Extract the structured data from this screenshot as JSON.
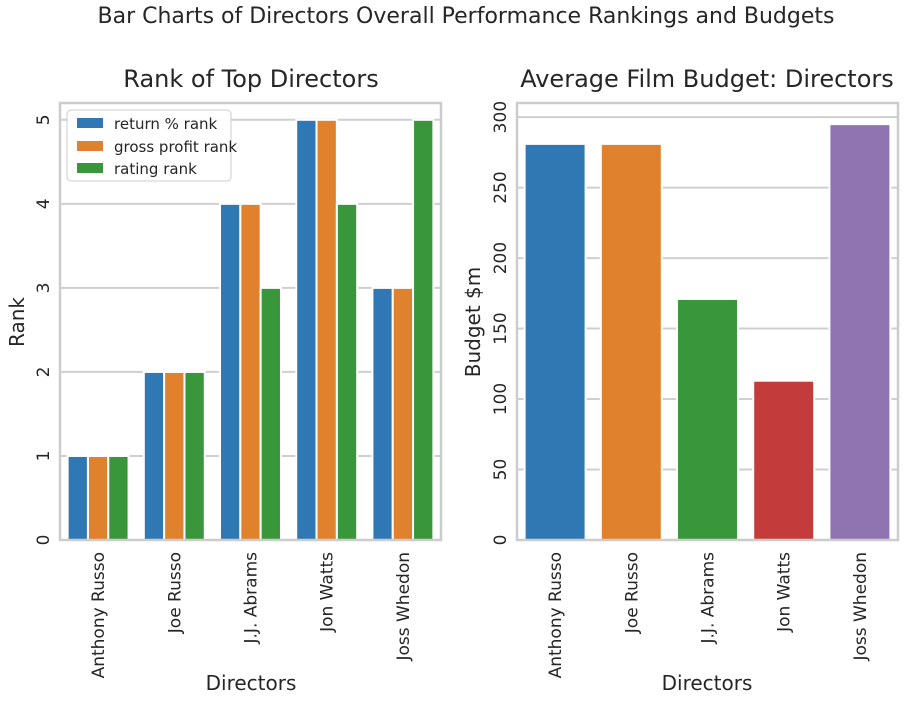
{
  "figure": {
    "suptitle": "Bar Charts of Directors Overall Performance Rankings and Budgets"
  },
  "colors": {
    "blue": "#2f78b3",
    "orange": "#e0822d",
    "green": "#3a963a",
    "red": "#c43b3c",
    "purple": "#9074b2",
    "grid": "#cfcfcf",
    "spine": "#cccccc"
  },
  "chart_data": [
    {
      "type": "bar",
      "title": "Rank of Top Directors",
      "xlabel": "Directors",
      "ylabel": "Rank",
      "categories": [
        "Anthony Russo",
        "Joe Russo",
        "J.J. Abrams",
        "Jon Watts",
        "Joss Whedon"
      ],
      "series": [
        {
          "name": "return % rank",
          "values": [
            1,
            2,
            4,
            5,
            3
          ]
        },
        {
          "name": "gross profit rank",
          "values": [
            1,
            2,
            4,
            5,
            3
          ]
        },
        {
          "name": "rating rank",
          "values": [
            1,
            2,
            3,
            4,
            5
          ]
        }
      ],
      "ylim": [
        0,
        5.2
      ],
      "yticks": [
        "0",
        "1",
        "2",
        "3",
        "4",
        "5"
      ],
      "grid": true,
      "legend": "top-left"
    },
    {
      "type": "bar",
      "title": "Average Film Budget: Directors",
      "xlabel": "Directors",
      "ylabel": "Budget $m",
      "categories": [
        "Anthony Russo",
        "Joe Russo",
        "J.J. Abrams",
        "Jon Watts",
        "Joss Whedon"
      ],
      "values": [
        281,
        281,
        171,
        113,
        295
      ],
      "ylim": [
        0,
        310
      ],
      "yticks": [
        "0",
        "50",
        "100",
        "150",
        "200",
        "250",
        "300"
      ],
      "grid": true
    }
  ]
}
